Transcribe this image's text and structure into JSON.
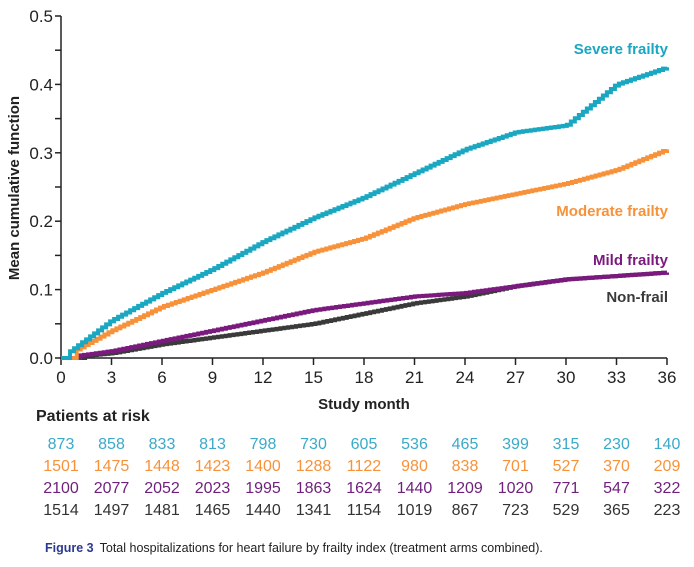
{
  "chart_data": {
    "type": "line",
    "step": true,
    "title": "",
    "xlabel": "Study month",
    "ylabel": "Mean cumulative function",
    "xlim": [
      0,
      36
    ],
    "ylim": [
      0,
      0.5
    ],
    "x_ticks": [
      0,
      3,
      6,
      9,
      12,
      15,
      18,
      21,
      24,
      27,
      30,
      33,
      36
    ],
    "x_tick_labels": [
      "0",
      "3",
      "6",
      "9",
      "12",
      "15",
      "18",
      "21",
      "24",
      "27",
      "30",
      "33",
      "36"
    ],
    "y_ticks": [
      0.0,
      0.1,
      0.2,
      0.3,
      0.4,
      0.5
    ],
    "y_tick_labels": [
      "0.0",
      "0.1",
      "0.2",
      "0.3",
      "0.4",
      "0.5"
    ],
    "y_minor_ticks": [
      0.05,
      0.15,
      0.25,
      0.35,
      0.45
    ],
    "grid": false,
    "legend": "inline-right",
    "x": [
      0,
      3,
      6,
      9,
      12,
      15,
      18,
      21,
      24,
      27,
      30,
      33,
      36
    ],
    "series": [
      {
        "name": "Severe frailty",
        "color": "#1aa7c1",
        "values": [
          0,
          0.055,
          0.095,
          0.13,
          0.17,
          0.205,
          0.235,
          0.27,
          0.305,
          0.33,
          0.34,
          0.4,
          0.425
        ]
      },
      {
        "name": "Moderate frailty",
        "color": "#f7923a",
        "values": [
          0,
          0.04,
          0.075,
          0.1,
          0.125,
          0.155,
          0.175,
          0.205,
          0.225,
          0.24,
          0.255,
          0.275,
          0.305
        ]
      },
      {
        "name": "Mild frailty",
        "color": "#7b1a7e",
        "values": [
          0,
          0.01,
          0.025,
          0.04,
          0.055,
          0.07,
          0.08,
          0.09,
          0.095,
          0.105,
          0.115,
          0.12,
          0.125
        ]
      },
      {
        "name": "Non-frail",
        "color": "#3a3a3a",
        "values": [
          0,
          0.007,
          0.02,
          0.03,
          0.04,
          0.05,
          0.065,
          0.08,
          0.09,
          0.105,
          0.115,
          0.12,
          0.125
        ]
      }
    ],
    "annotations": [
      "Severe frailty",
      "Moderate frailty",
      "Mild frailty",
      "Non-frail"
    ]
  },
  "risk_table": {
    "title": "Patients at risk",
    "rows": [
      {
        "series": "Severe frailty",
        "color": "#3aaac8",
        "values": [
          "873",
          "858",
          "833",
          "813",
          "798",
          "730",
          "605",
          "536",
          "465",
          "399",
          "315",
          "230",
          "140"
        ]
      },
      {
        "series": "Moderate frailty",
        "color": "#f7923a",
        "values": [
          "1501",
          "1475",
          "1448",
          "1423",
          "1400",
          "1288",
          "1122",
          "980",
          "838",
          "701",
          "527",
          "370",
          "209"
        ]
      },
      {
        "series": "Mild frailty",
        "color": "#6f1f7c",
        "values": [
          "2100",
          "2077",
          "2052",
          "2023",
          "1995",
          "1863",
          "1624",
          "1440",
          "1209",
          "1020",
          "771",
          "547",
          "322"
        ]
      },
      {
        "series": "Non-frail",
        "color": "#333333",
        "values": [
          "1514",
          "1497",
          "1481",
          "1465",
          "1440",
          "1341",
          "1154",
          "1019",
          "867",
          "723",
          "529",
          "365",
          "223"
        ]
      }
    ]
  },
  "caption": {
    "figure_number": "Figure 3",
    "text": "Total hospitalizations for heart failure by frailty index (treatment arms combined)."
  }
}
